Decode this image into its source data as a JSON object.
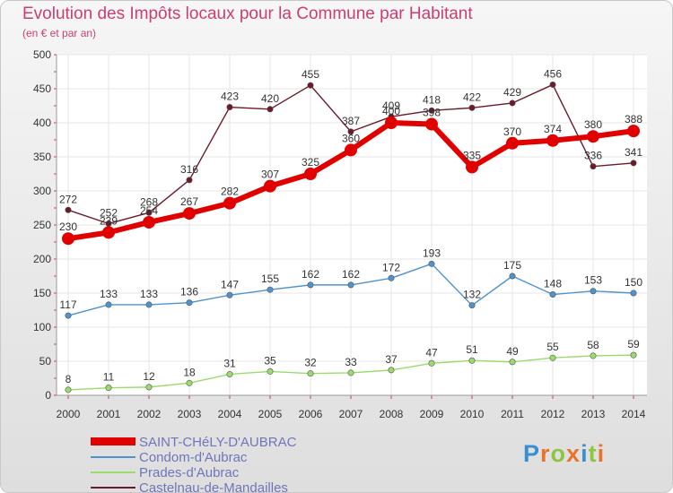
{
  "header": {
    "title": "Evolution des Impôts locaux pour la Commune par Habitant",
    "subtitle": "(en € et par an)"
  },
  "logo": {
    "text": "Proxiti",
    "letters": [
      "P",
      "r",
      "o",
      "x",
      "i",
      "t",
      "i"
    ],
    "colors": [
      "#3a8fd0",
      "#e8732a",
      "#8cc63f",
      "#e8732a",
      "#3a8fd0",
      "#8cc63f",
      "#e8732a"
    ]
  },
  "legend": [
    {
      "label": "SAINT-CHéLY-D'AUBRAC",
      "color": "#e00000"
    },
    {
      "label": "Condom-d'Aubrac",
      "color": "#4f92cc"
    },
    {
      "label": "Prades-d'Aubrac",
      "color": "#9bdb6e"
    },
    {
      "label": "Castelnau-de-Mandailles",
      "color": "#6b1a2a"
    }
  ],
  "chart_data": {
    "type": "line",
    "title": "Evolution des Impôts locaux pour la Commune par Habitant",
    "subtitle": "(en € et par an)",
    "x": [
      "2000",
      "2001",
      "2002",
      "2003",
      "2004",
      "2005",
      "2006",
      "2007",
      "2008",
      "2009",
      "2010",
      "2011",
      "2012",
      "2013",
      "2014"
    ],
    "ylim": [
      0,
      500
    ],
    "yticks": [
      "0",
      "50",
      "100",
      "150",
      "200",
      "250",
      "300",
      "350",
      "400",
      "450",
      "500"
    ],
    "grid": true,
    "legend_position": "bottom-left",
    "series": [
      {
        "name": "Castelnau-de-Mandailles",
        "color": "#6b1a2a",
        "labels": "above",
        "values": [
          272,
          252,
          268,
          316,
          423,
          420,
          455,
          387,
          409,
          418,
          422,
          429,
          456,
          336,
          341
        ]
      },
      {
        "name": "Condom-d'Aubrac",
        "color": "#4f92cc",
        "labels": "above",
        "values": [
          117,
          133,
          133,
          136,
          147,
          155,
          162,
          162,
          172,
          193,
          132,
          175,
          148,
          153,
          150
        ]
      },
      {
        "name": "Prades-d'Aubrac",
        "color": "#9bdb6e",
        "labels": "above",
        "values": [
          8,
          11,
          12,
          18,
          31,
          35,
          32,
          33,
          37,
          47,
          51,
          49,
          55,
          58,
          59
        ]
      },
      {
        "name": "SAINT-CHéLY-D'AUBRAC",
        "color": "#e00000",
        "labels": "above",
        "values": [
          230,
          239,
          254,
          267,
          282,
          307,
          325,
          360,
          400,
          398,
          335,
          370,
          374,
          380,
          388
        ]
      }
    ]
  }
}
